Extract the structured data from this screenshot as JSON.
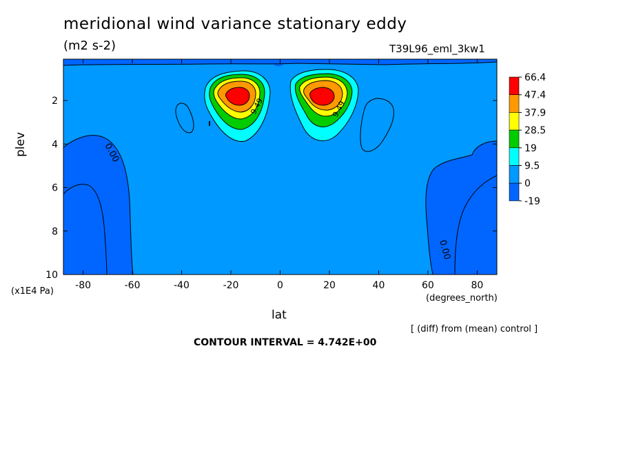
{
  "header": {
    "title": "meridional wind variance  stationary eddy",
    "units": "(m2 s-2)",
    "run_id": "T39L96_eml_3kw1"
  },
  "footer": {
    "diff_note": "[ (diff) from (mean) control ]",
    "contour_interval": "CONTOUR INTERVAL = 4.742E+00"
  },
  "chart_data": {
    "type": "heatmap",
    "subtype": "filled contour",
    "title": "meridional wind variance  stationary eddy",
    "units": "(m2 s-2)",
    "xlabel": "lat",
    "x_unit_label": "(degrees_north)",
    "ylabel": "plev",
    "y_unit_label": "(x1E4 Pa)",
    "xlim": [
      -88,
      88
    ],
    "ylim": [
      0.1,
      10
    ],
    "y_inverted": true,
    "x_ticks": [
      -80,
      -60,
      -40,
      -20,
      0,
      20,
      40,
      60,
      80
    ],
    "y_ticks": [
      2,
      4,
      6,
      8,
      10
    ],
    "contour_interval": 4.742,
    "contour_labels": [
      "0.00",
      "9.49",
      "9.49",
      "0.00"
    ],
    "colorbar": {
      "labels": [
        "66.4",
        "47.4",
        "37.9",
        "28.5",
        "19",
        "9.5",
        "0",
        "-19"
      ],
      "colors": [
        "#ff0000",
        "#ff9900",
        "#ffff00",
        "#00cc00",
        "#00ffff",
        "#0099ff",
        "#0066ff"
      ]
    },
    "background_level_color": "#0099ff",
    "features": [
      {
        "name": "southern maximum",
        "lat": -17,
        "plev": 2.0,
        "max_value": 66.4
      },
      {
        "name": "northern maximum",
        "lat": 17,
        "plev": 2.0,
        "max_value": 66.4
      },
      {
        "name": "negative region SH",
        "lat_range": [
          -88,
          -60
        ],
        "plev_range": [
          3.8,
          10
        ],
        "value_range": [
          -19,
          0
        ]
      },
      {
        "name": "negative region NH",
        "lat_range": [
          60,
          88
        ],
        "plev_range": [
          3.8,
          10
        ],
        "value_range": [
          -19,
          0
        ]
      }
    ]
  }
}
